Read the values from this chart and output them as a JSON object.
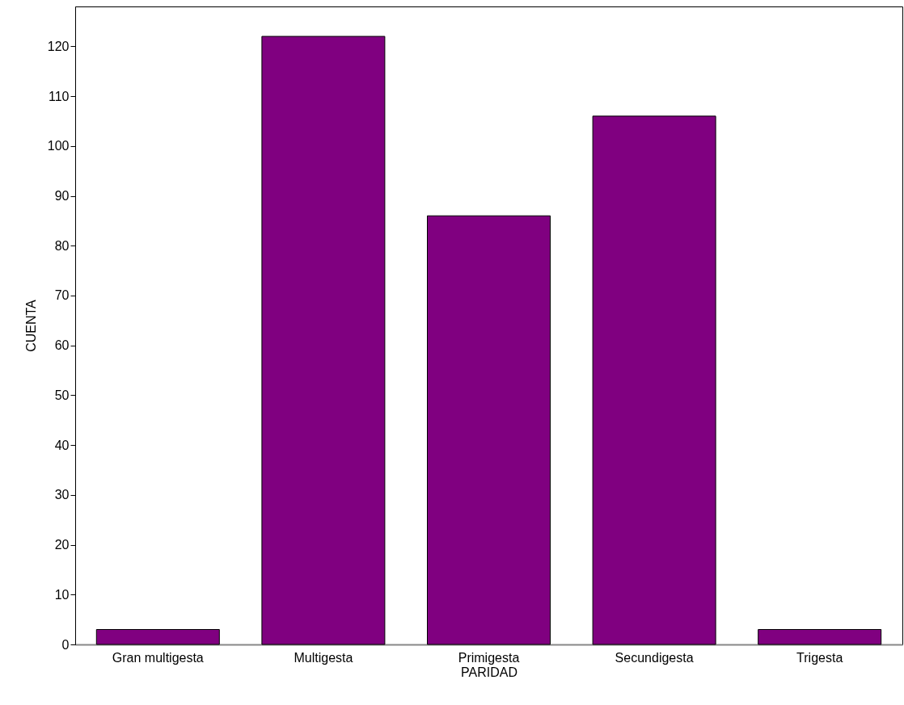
{
  "chart_data": {
    "type": "bar",
    "xlabel": "PARIDAD",
    "ylabel": "CUENTA",
    "categories": [
      "Gran multigesta",
      "Multigesta",
      "Primigesta",
      "Secundigesta",
      "Trigesta"
    ],
    "values": [
      3,
      122,
      86,
      106,
      3
    ],
    "color": "#800080",
    "ylim": [
      0,
      128
    ],
    "yticks": [
      0,
      10,
      20,
      30,
      40,
      50,
      60,
      70,
      80,
      90,
      100,
      110,
      120
    ],
    "grid": false
  }
}
